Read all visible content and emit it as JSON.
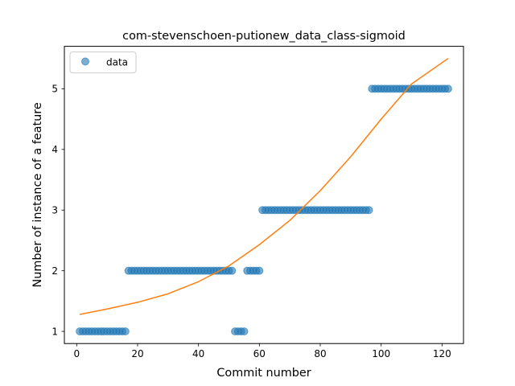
{
  "chart_data": {
    "type": "scatter",
    "title": "com-stevenschoen-putionew_data_class-sigmoid",
    "xlabel": "Commit number",
    "ylabel": "Number of instance of a feature",
    "xlim": [
      -4.05,
      127.05
    ],
    "ylim": [
      0.8,
      5.7
    ],
    "x_ticks": [
      0,
      20,
      40,
      60,
      80,
      100,
      120
    ],
    "y_ticks": [
      1,
      2,
      3,
      4,
      5
    ],
    "grid": false,
    "legend": {
      "placement": "upper-left",
      "entries": [
        "data"
      ]
    },
    "colors": {
      "data": "#1f77b4",
      "fit": "#ff7f0e"
    },
    "series": [
      {
        "name": "data",
        "kind": "points",
        "segments": [
          {
            "x_from": 1,
            "x_to": 16,
            "y": 1
          },
          {
            "x_from": 17,
            "x_to": 51,
            "y": 2
          },
          {
            "x_from": 52,
            "x_to": 55,
            "y": 1
          },
          {
            "x_from": 56,
            "x_to": 60,
            "y": 2
          },
          {
            "x_from": 61,
            "x_to": 96,
            "y": 3
          },
          {
            "x_from": 97,
            "x_to": 122,
            "y": 5
          }
        ]
      },
      {
        "kind": "line",
        "x": [
          1,
          10,
          20,
          30,
          40,
          50,
          60,
          70,
          80,
          90,
          100,
          110,
          122
        ],
        "y": [
          1.28,
          1.37,
          1.48,
          1.62,
          1.82,
          2.08,
          2.43,
          2.83,
          3.32,
          3.88,
          4.5,
          5.08,
          5.5
        ]
      }
    ]
  }
}
